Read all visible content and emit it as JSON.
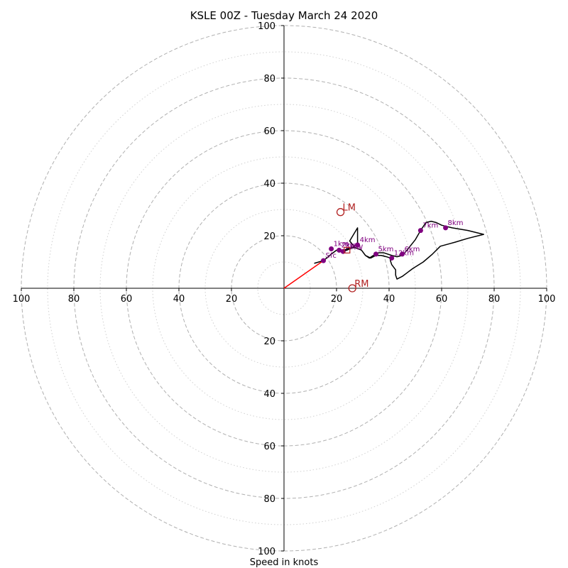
{
  "chart_data": {
    "type": "hodograph",
    "title": "KSLE 00Z - Tuesday March 24 2020",
    "xlabel": "Speed in knots",
    "range": 100,
    "rings_dashed": [
      20,
      40,
      60,
      80,
      100
    ],
    "rings_dotted": [
      10,
      30,
      50,
      70,
      90
    ],
    "x_tick_labels": [
      "100",
      "80",
      "60",
      "40",
      "20",
      "20",
      "40",
      "60",
      "80",
      "100"
    ],
    "x_tick_values": [
      -100,
      -80,
      -60,
      -40,
      -20,
      20,
      40,
      60,
      80,
      100
    ],
    "y_tick_labels": [
      "100",
      "80",
      "60",
      "40",
      "20",
      "20",
      "40",
      "60",
      "80",
      "100"
    ],
    "y_tick_values": [
      100,
      80,
      60,
      40,
      20,
      -20,
      -40,
      -60,
      -80,
      -100
    ],
    "hodograph_trace": [
      [
        11.5,
        9.5
      ],
      [
        15,
        10.5
      ],
      [
        18,
        13
      ],
      [
        20,
        14.5
      ],
      [
        22,
        14
      ],
      [
        24,
        14.5
      ],
      [
        26,
        15.5
      ],
      [
        28,
        17
      ],
      [
        28,
        23
      ],
      [
        25,
        18
      ],
      [
        27,
        15.5
      ],
      [
        29.5,
        14.5
      ],
      [
        31,
        12.5
      ],
      [
        32.5,
        11.5
      ],
      [
        34,
        12.5
      ],
      [
        36,
        13.5
      ],
      [
        38,
        13.5
      ],
      [
        41,
        12.5
      ],
      [
        43,
        12
      ],
      [
        45,
        12.5
      ],
      [
        46,
        13.5
      ],
      [
        48,
        16
      ],
      [
        50,
        18.5
      ],
      [
        52,
        22
      ],
      [
        54,
        25
      ],
      [
        56,
        25.5
      ],
      [
        58,
        25
      ],
      [
        60,
        24
      ],
      [
        62,
        23.5
      ],
      [
        64,
        23
      ],
      [
        70,
        22
      ],
      [
        76,
        20.5
      ],
      [
        70,
        19
      ],
      [
        65,
        17.5
      ],
      [
        59.5,
        16
      ],
      [
        56.5,
        13
      ],
      [
        53,
        10
      ],
      [
        49,
        7.5
      ],
      [
        47,
        6
      ],
      [
        45,
        4.5
      ],
      [
        43,
        3.5
      ],
      [
        42.5,
        5
      ],
      [
        42.5,
        7
      ],
      [
        41,
        9
      ],
      [
        40.5,
        10.5
      ],
      [
        40.5,
        11.5
      ],
      [
        39,
        12
      ],
      [
        37,
        12.5
      ],
      [
        35,
        12.5
      ],
      [
        33,
        11.5
      ],
      [
        31,
        12.5
      ],
      [
        29.5,
        14.5
      ],
      [
        27,
        15.5
      ],
      [
        24,
        15
      ],
      [
        22,
        14
      ],
      [
        20,
        14.5
      ],
      [
        18,
        13
      ],
      [
        15,
        10.5
      ],
      [
        11.5,
        9.5
      ]
    ],
    "height_markers": [
      {
        "label": "Sfc",
        "u": 15,
        "v": 10.5
      },
      {
        "label": "1km",
        "u": 18,
        "v": 15
      },
      {
        "label": "2km",
        "u": 21,
        "v": 14.5
      },
      {
        "label": "3km",
        "u": 22.5,
        "v": 14
      },
      {
        "label": "4km",
        "u": 28,
        "v": 16.5
      },
      {
        "label": "5km",
        "u": 35,
        "v": 13
      },
      {
        "label": "6km",
        "u": 45,
        "v": 13
      },
      {
        "label": "7km",
        "u": 52,
        "v": 22
      },
      {
        "label": "8km",
        "u": 61.5,
        "v": 23
      },
      {
        "label": "12km",
        "u": 41,
        "v": 11.5
      }
    ],
    "storm_motion": [
      {
        "label": "LM",
        "u": 21.5,
        "v": 29
      },
      {
        "label": "RM",
        "u": 26,
        "v": 0
      }
    ],
    "mean_wind": {
      "label": "MW",
      "u": 24,
      "v": 14.5
    },
    "shear_vector": {
      "from": [
        0,
        0
      ],
      "to": [
        15,
        10.5
      ]
    },
    "colors": {
      "trace": "#000000",
      "markers": "#800080",
      "storm_motion": "#b22222",
      "shear_vector": "#ff0000",
      "grid": "#b0b0b0"
    }
  }
}
